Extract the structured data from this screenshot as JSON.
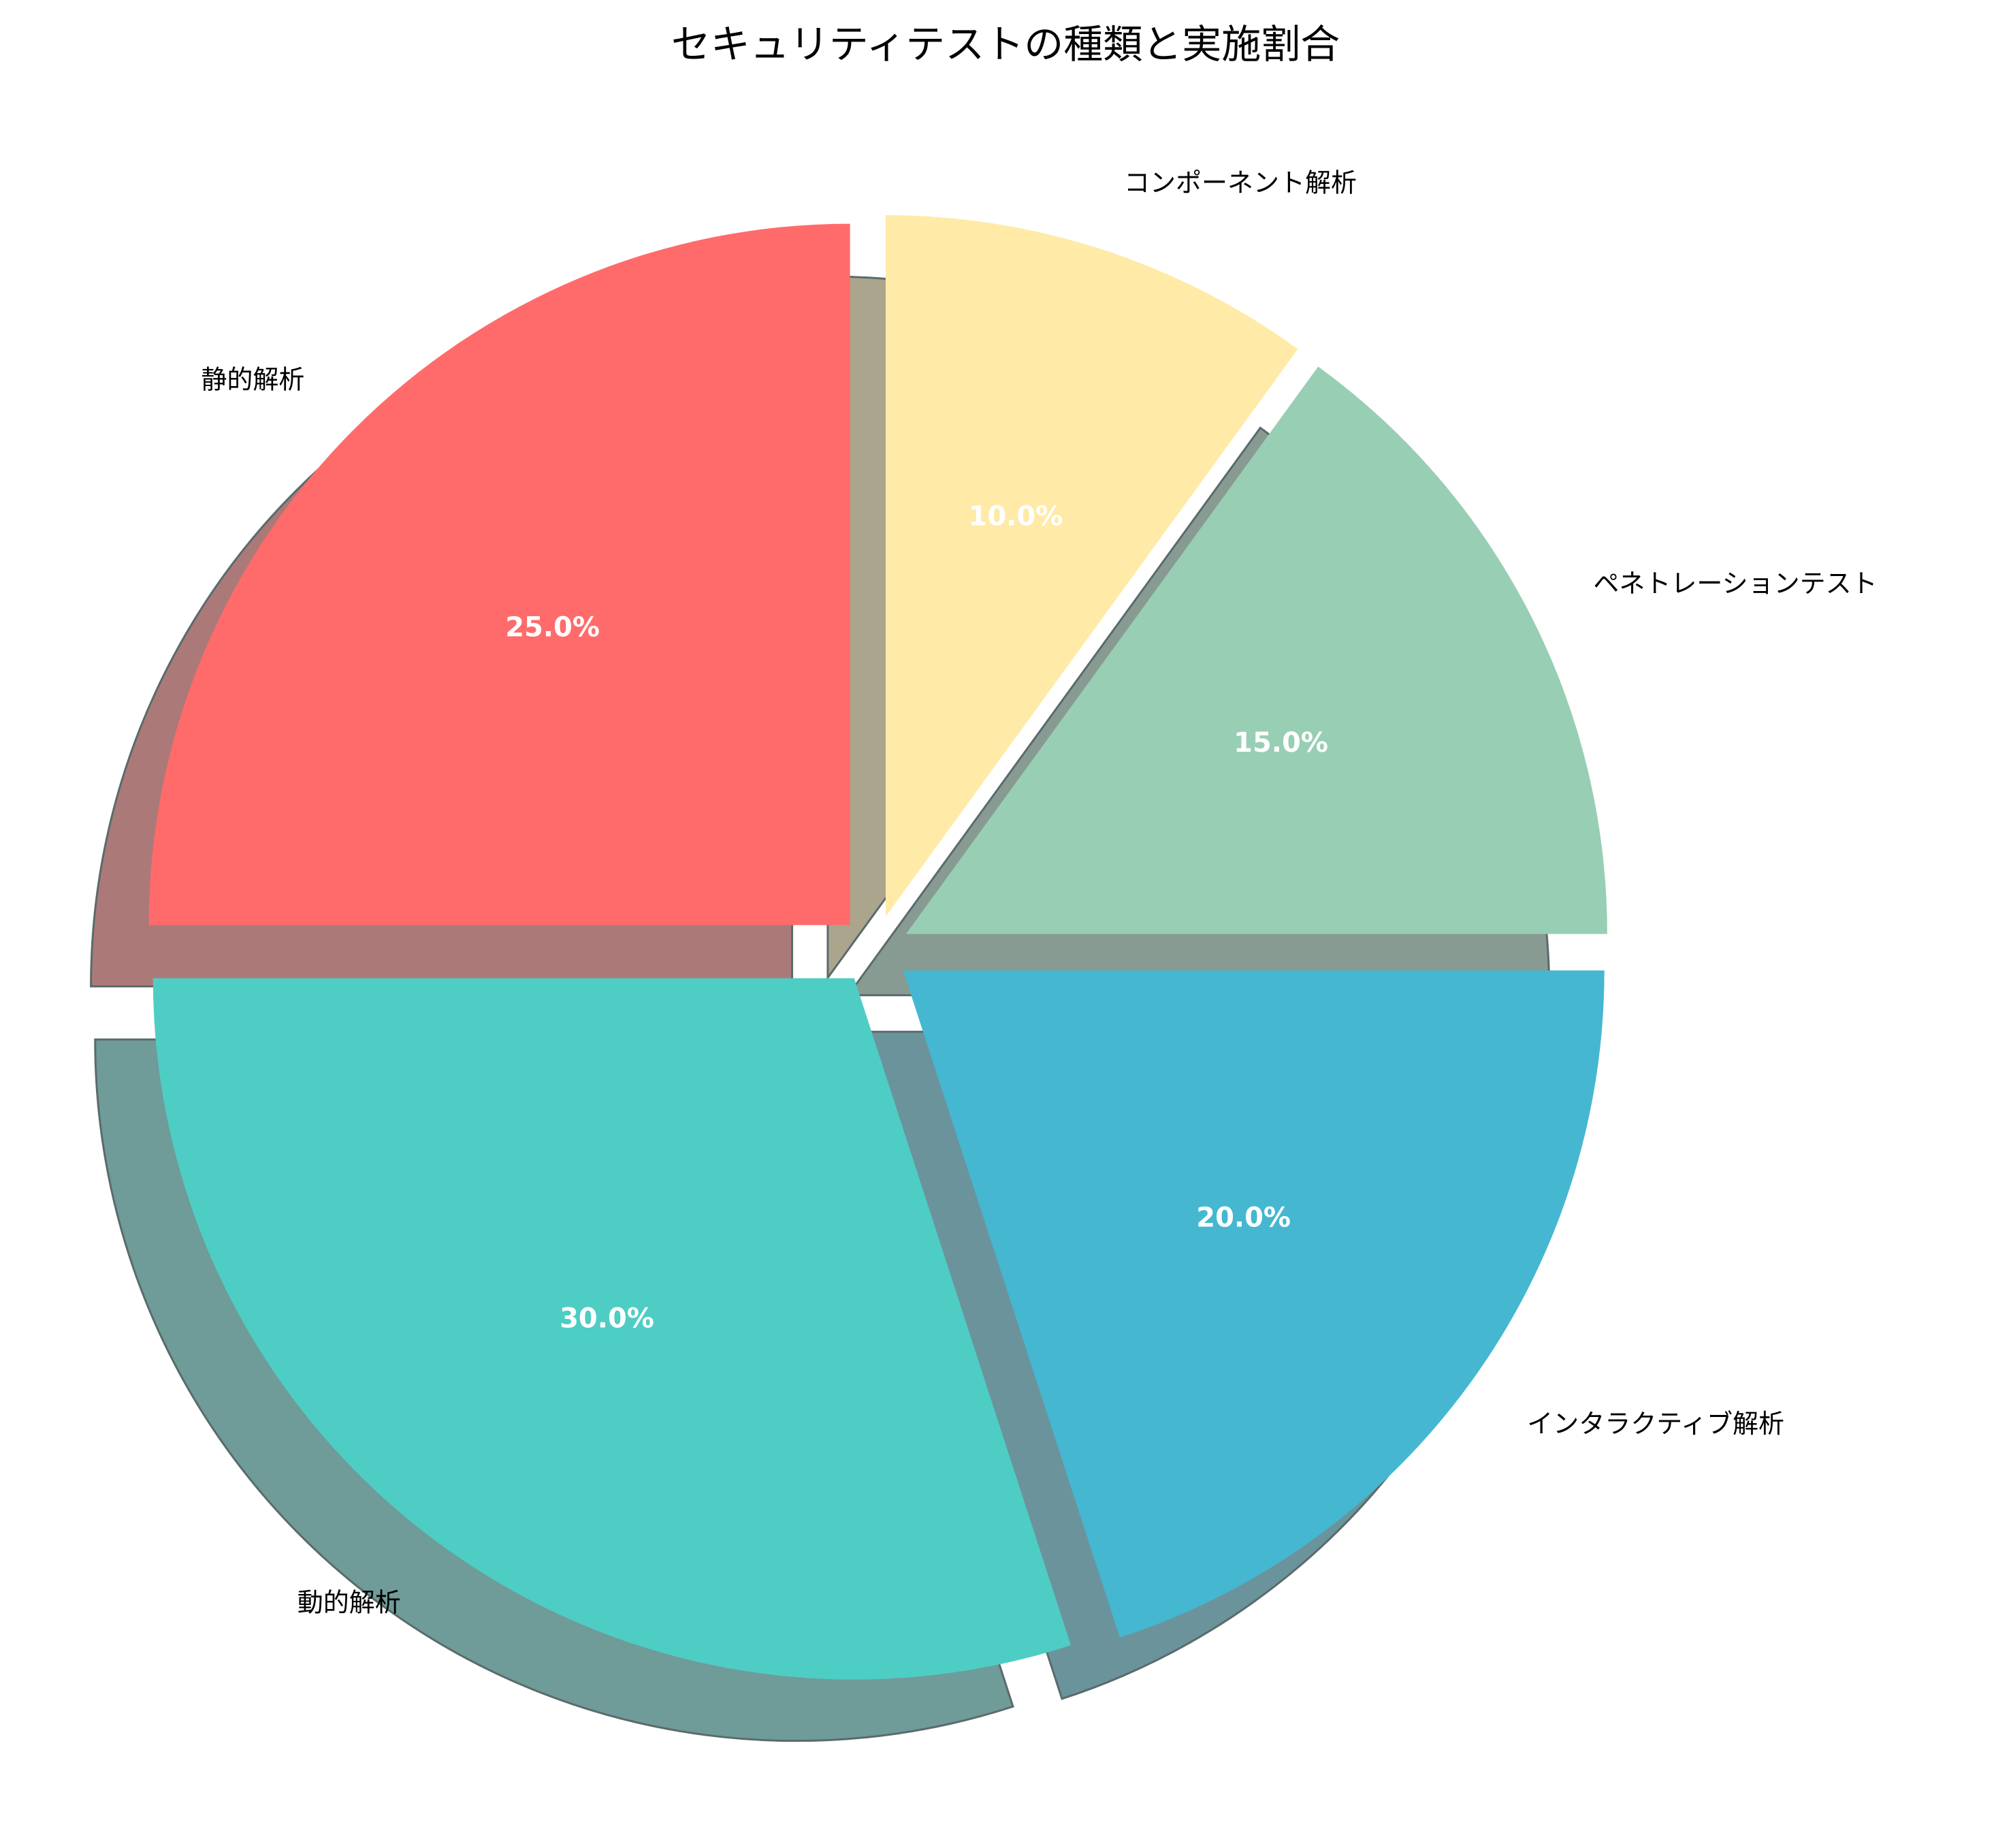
{
  "chart_data": {
    "type": "pie",
    "title": "セキュリティテストの種類と実施割合",
    "start_angle_deg": 90,
    "direction": "counterclockwise",
    "shadow": true,
    "slices": [
      {
        "label": "静的解析",
        "value": 25.0,
        "pct_label": "25.0%",
        "color": "#FF6B6B",
        "exploded": true
      },
      {
        "label": "動的解析",
        "value": 30.0,
        "pct_label": "30.0%",
        "color": "#4ECDC4",
        "exploded": true
      },
      {
        "label": "インタラクティブ解析",
        "value": 20.0,
        "pct_label": "20.0%",
        "color": "#45B7D1",
        "exploded": true
      },
      {
        "label": "ペネトレーションテスト",
        "value": 15.0,
        "pct_label": "15.0%",
        "color": "#98CEB4",
        "exploded": true
      },
      {
        "label": "コンポーネント解析",
        "value": 10.0,
        "pct_label": "10.0%",
        "color": "#FFEAA7",
        "exploded": true
      }
    ]
  }
}
